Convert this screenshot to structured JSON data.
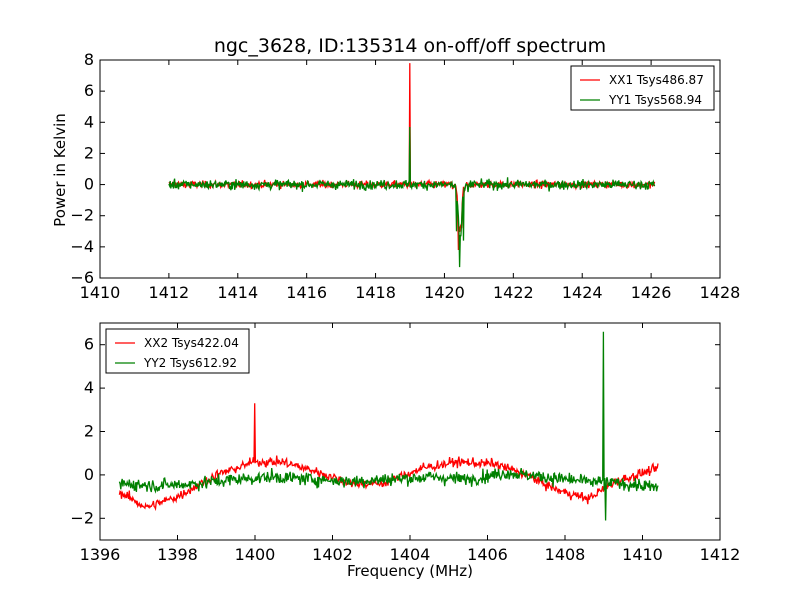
{
  "chart_data": [
    {
      "type": "line",
      "title": "ngc_3628, ID:135314 on-off/off spectrum",
      "xlabel": "",
      "ylabel": "Power in Kelvin",
      "xlim": [
        1410,
        1428
      ],
      "ylim": [
        -6,
        8
      ],
      "xticks": [
        1410,
        1412,
        1414,
        1416,
        1418,
        1420,
        1422,
        1424,
        1426,
        1428
      ],
      "yticks": [
        -6,
        -4,
        -2,
        0,
        2,
        4,
        6,
        8
      ],
      "legend_position": "top-right",
      "series": [
        {
          "name": "XX1 Tsys486.87",
          "color": "#ff0000",
          "x_range": [
            1412.0,
            1426.1
          ],
          "baseline": 0.0,
          "noise": 0.28,
          "features": [
            {
              "x": 1419.0,
              "y": 7.8
            },
            {
              "x": 1420.4,
              "y": -4.2
            },
            {
              "x": 1420.5,
              "y": -2.8
            }
          ]
        },
        {
          "name": "YY1 Tsys568.94",
          "color": "#008000",
          "x_range": [
            1412.0,
            1426.1
          ],
          "baseline": 0.0,
          "noise": 0.38,
          "features": [
            {
              "x": 1419.0,
              "y": 3.7
            },
            {
              "x": 1420.35,
              "y": -3.0
            },
            {
              "x": 1420.45,
              "y": -5.3
            },
            {
              "x": 1420.55,
              "y": -3.6
            }
          ]
        }
      ]
    },
    {
      "type": "line",
      "title": "",
      "xlabel": "Frequency (MHz)",
      "ylabel": "",
      "xlim": [
        1396,
        1412
      ],
      "ylim": [
        -3,
        7
      ],
      "xticks": [
        1396,
        1398,
        1400,
        1402,
        1404,
        1406,
        1408,
        1410,
        1412
      ],
      "yticks": [
        -2,
        0,
        2,
        4,
        6
      ],
      "legend_position": "top-left",
      "series": [
        {
          "name": "XX2 Tsys422.04",
          "color": "#ff0000",
          "x_range": [
            1396.5,
            1410.4
          ],
          "noise": 0.28,
          "baseline_points": [
            [
              1396.5,
              -0.8
            ],
            [
              1397.2,
              -1.5
            ],
            [
              1398.0,
              -1.0
            ],
            [
              1399.0,
              0.0
            ],
            [
              1400.0,
              0.6
            ],
            [
              1400.7,
              0.6
            ],
            [
              1401.5,
              0.2
            ],
            [
              1402.5,
              -0.4
            ],
            [
              1403.3,
              -0.4
            ],
            [
              1404.3,
              0.3
            ],
            [
              1405.2,
              0.6
            ],
            [
              1406.2,
              0.5
            ],
            [
              1407.0,
              0.0
            ],
            [
              1407.8,
              -0.7
            ],
            [
              1408.6,
              -1.1
            ],
            [
              1409.3,
              -0.3
            ],
            [
              1410.4,
              0.3
            ]
          ],
          "features": [
            {
              "x": 1400.0,
              "y": 3.3
            }
          ]
        },
        {
          "name": "YY2 Tsys612.92",
          "color": "#008000",
          "x_range": [
            1396.5,
            1410.4
          ],
          "noise": 0.38,
          "baseline_points": [
            [
              1396.5,
              -0.4
            ],
            [
              1397.5,
              -0.5
            ],
            [
              1398.5,
              -0.4
            ],
            [
              1399.5,
              -0.2
            ],
            [
              1400.5,
              -0.1
            ],
            [
              1401.5,
              -0.2
            ],
            [
              1402.5,
              -0.3
            ],
            [
              1403.5,
              -0.2
            ],
            [
              1404.5,
              -0.1
            ],
            [
              1405.5,
              -0.2
            ],
            [
              1406.5,
              0.1
            ],
            [
              1407.5,
              -0.1
            ],
            [
              1408.5,
              -0.3
            ],
            [
              1409.5,
              -0.4
            ],
            [
              1410.4,
              -0.6
            ]
          ],
          "features": [
            {
              "x": 1409.0,
              "y": 6.6
            },
            {
              "x": 1409.05,
              "y": -2.1
            }
          ]
        }
      ]
    }
  ]
}
